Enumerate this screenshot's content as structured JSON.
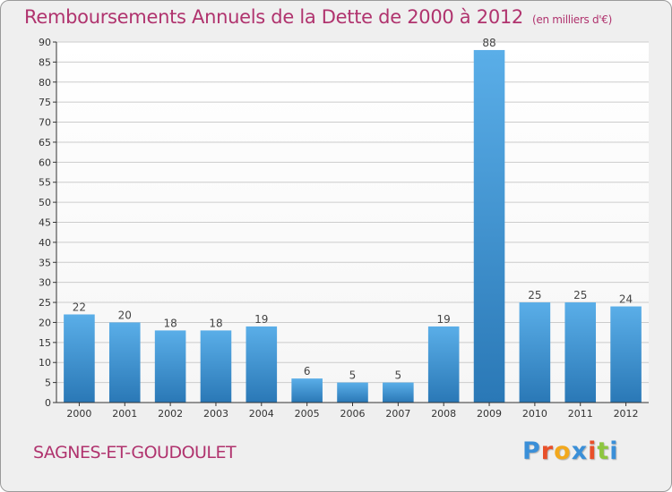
{
  "title": "Remboursements Annuels de la Dette de 2000 à 2012",
  "unit": "(en milliers d'€)",
  "commune": "SAGNES-ET-GOUDOULET",
  "logo": {
    "text": "Proxiti",
    "colors": [
      "#3a8fd8",
      "#e8502a",
      "#f2a81d",
      "#3a8fd8",
      "#e8502a",
      "#8dc63f",
      "#3a8fd8"
    ]
  },
  "colors": {
    "title": "#b0336e",
    "bar_top": "#5aaee8",
    "bar_bottom": "#2a78b6",
    "grid": "#cccccc",
    "axis": "#333333"
  },
  "chart_data": {
    "type": "bar",
    "categories": [
      "2000",
      "2001",
      "2002",
      "2003",
      "2004",
      "2005",
      "2006",
      "2007",
      "2008",
      "2009",
      "2010",
      "2011",
      "2012"
    ],
    "values": [
      22,
      20,
      18,
      18,
      19,
      6,
      5,
      5,
      19,
      88,
      25,
      25,
      24
    ],
    "title": "Remboursements Annuels de la Dette de 2000 à 2012",
    "ylim": [
      0,
      90
    ],
    "yticks": [
      0,
      5,
      10,
      15,
      20,
      25,
      30,
      35,
      40,
      45,
      50,
      55,
      60,
      65,
      70,
      75,
      80,
      85,
      90
    ],
    "grid": true,
    "data_labels": true
  }
}
